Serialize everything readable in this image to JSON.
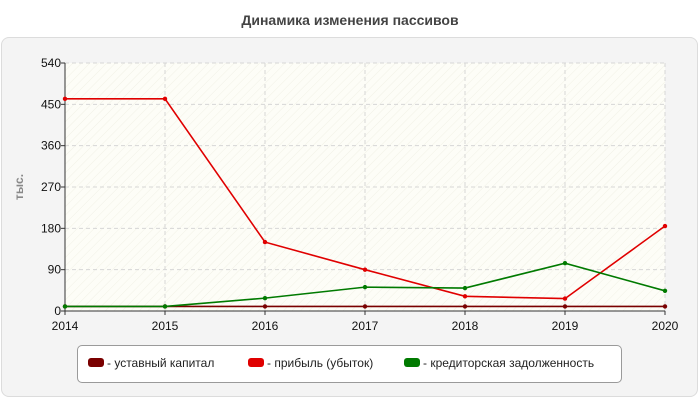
{
  "chart_data": {
    "type": "line",
    "title": "Динамика изменения пассивов",
    "ylabel": "тыс.",
    "xlabel": "",
    "x": [
      "2014",
      "2015",
      "2016",
      "2017",
      "2018",
      "2019",
      "2020"
    ],
    "ylim": [
      0,
      540
    ],
    "yticks": [
      0,
      90,
      180,
      270,
      360,
      450,
      540
    ],
    "grid": true,
    "legend": "bottom",
    "series": [
      {
        "name": "- уставный капитал",
        "color": "#7a0000",
        "values": [
          10,
          10,
          10,
          10,
          10,
          10,
          10
        ]
      },
      {
        "name": "- прибыль (убыток)",
        "color": "#e00000",
        "values": [
          462,
          462,
          150,
          90,
          32,
          27,
          185
        ]
      },
      {
        "name": "- кредиторская задолженность",
        "color": "#007a00",
        "values": [
          10,
          10,
          28,
          52,
          50,
          104,
          44
        ]
      }
    ]
  }
}
